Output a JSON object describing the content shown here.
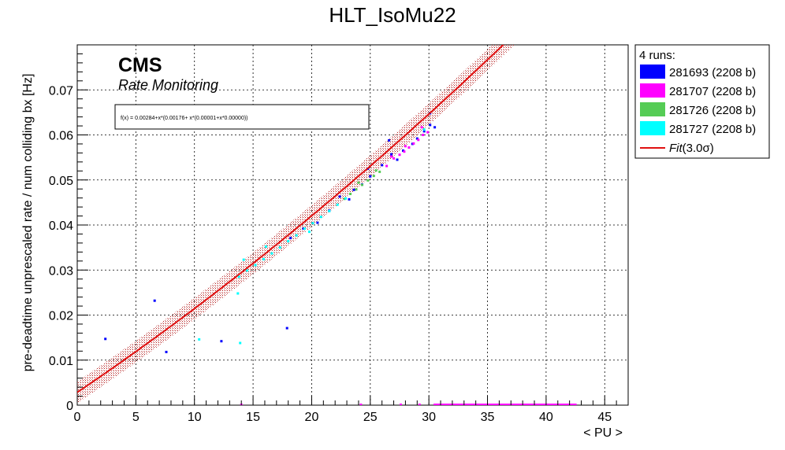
{
  "chart_data": {
    "type": "scatter",
    "title": "HLT_IsoMu22",
    "xlabel": "< PU >",
    "ylabel": "pre-deadtime unprescaled rate / num colliding bx [Hz]",
    "xlim": [
      0,
      47
    ],
    "ylim": [
      0,
      0.08
    ],
    "xticks": [
      "0",
      "5",
      "10",
      "15",
      "20",
      "25",
      "30",
      "35",
      "40",
      "45"
    ],
    "yticks": [
      "0",
      "0.01",
      "0.02",
      "0.03",
      "0.04",
      "0.05",
      "0.06",
      "0.07"
    ],
    "grid": true,
    "legend_position": "top-right",
    "cms_label": "CMS",
    "cms_sublabel": "Rate Monitoring",
    "fit_formula": "f(x) = 0.00284+x*(0.00176+ x*(0.00001+x*0.00000))",
    "fit": {
      "name": "Fit(3.0σ)",
      "label_main": "Fit",
      "label_sigma": "(3.0σ)",
      "color": "#e01010",
      "coefficients": [
        0.00284,
        0.00176,
        1e-05,
        0.0
      ],
      "band_halfwidth": 0.0024
    },
    "legend_header": "4 runs:",
    "series": [
      {
        "name": "281693 (2208 b)",
        "color": "#0000ff",
        "points": [
          [
            2.4,
            0.0147
          ],
          [
            6.6,
            0.0232
          ],
          [
            7.6,
            0.0118
          ],
          [
            12.3,
            0.0142
          ],
          [
            17.9,
            0.0171
          ],
          [
            21.5,
            0.0432
          ],
          [
            22.4,
            0.0463
          ],
          [
            23.6,
            0.0478
          ],
          [
            24.3,
            0.049
          ],
          [
            25.0,
            0.0508
          ],
          [
            26.0,
            0.0533
          ],
          [
            26.8,
            0.0557
          ],
          [
            27.3,
            0.0545
          ],
          [
            27.8,
            0.0565
          ],
          [
            28.6,
            0.058
          ],
          [
            29.0,
            0.0592
          ],
          [
            29.6,
            0.0608
          ],
          [
            30.1,
            0.0622
          ],
          [
            30.1,
            0.0648
          ],
          [
            30.5,
            0.0617
          ],
          [
            26.6,
            0.0588
          ],
          [
            24.8,
            0.0525
          ],
          [
            23.2,
            0.0457
          ],
          [
            20.5,
            0.0405
          ],
          [
            19.3,
            0.0392
          ],
          [
            18.2,
            0.0371
          ]
        ]
      },
      {
        "name": "281707 (2208 b)",
        "color": "#ff00ff",
        "points": [
          [
            26.4,
            0.0531
          ],
          [
            27.0,
            0.0548
          ],
          [
            27.5,
            0.0556
          ],
          [
            27.9,
            0.0563
          ],
          [
            28.3,
            0.0572
          ],
          [
            28.7,
            0.0581
          ],
          [
            29.1,
            0.0589
          ],
          [
            29.5,
            0.06
          ],
          [
            29.9,
            0.0606
          ],
          [
            28.0,
            0.0575
          ],
          [
            29.4,
            0.0617
          ],
          [
            26.8,
            0.0552
          ]
        ]
      },
      {
        "name": "281726 (2208 b)",
        "color": "#55cc55",
        "points": [
          [
            22.8,
            0.0458
          ],
          [
            23.3,
            0.0469
          ],
          [
            23.8,
            0.0479
          ],
          [
            24.3,
            0.0489
          ],
          [
            24.8,
            0.0499
          ],
          [
            25.3,
            0.0509
          ],
          [
            25.8,
            0.0518
          ],
          [
            24.0,
            0.0494
          ],
          [
            25.5,
            0.0521
          ]
        ]
      },
      {
        "name": "281727 (2208 b)",
        "color": "#00ffff",
        "points": [
          [
            13.8,
            0.0285
          ],
          [
            14.5,
            0.0299
          ],
          [
            15.2,
            0.0311
          ],
          [
            15.9,
            0.0324
          ],
          [
            16.6,
            0.0337
          ],
          [
            17.3,
            0.035
          ],
          [
            18.0,
            0.0364
          ],
          [
            18.7,
            0.0377
          ],
          [
            19.4,
            0.0392
          ],
          [
            20.1,
            0.0404
          ],
          [
            20.8,
            0.0418
          ],
          [
            21.5,
            0.0431
          ],
          [
            22.2,
            0.0445
          ],
          [
            22.9,
            0.0459
          ],
          [
            14.2,
            0.0323
          ],
          [
            16.1,
            0.0352
          ],
          [
            19.8,
            0.0385
          ],
          [
            13.7,
            0.0248
          ],
          [
            10.4,
            0.0146
          ],
          [
            13.9,
            0.0138
          ],
          [
            29.6,
            0.0612
          ]
        ]
      }
    ],
    "x_axis_segments": [
      {
        "name": "281707 (2208 b)",
        "color": "#ff00ff",
        "x_from": 30.4,
        "x_to": 42.6
      }
    ],
    "x_axis_ticks": [
      {
        "name": "281707 (2208 b)",
        "color": "#ff00ff",
        "x": [
          14.0,
          24.2,
          27.6,
          29.2
        ]
      }
    ]
  }
}
